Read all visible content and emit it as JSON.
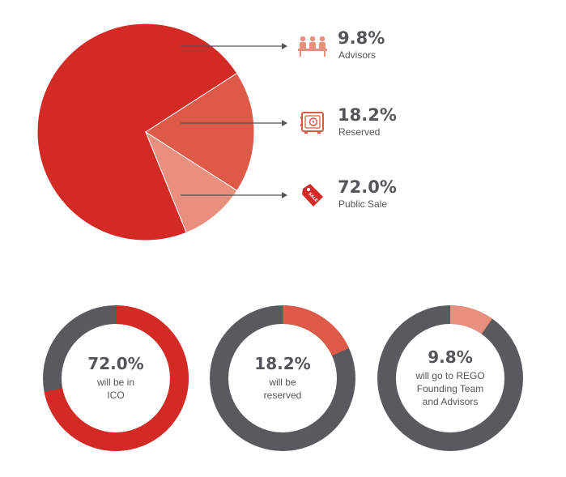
{
  "chart_data": [
    {
      "type": "pie",
      "slices": [
        {
          "label": "Public Sale",
          "value": 72.0,
          "percent_text": "72.0%",
          "color": "#d42a25",
          "icon": "sale-tag-icon"
        },
        {
          "label": "Reserved",
          "value": 18.2,
          "percent_text": "18.2%",
          "color": "#dc5a47",
          "icon": "safe-icon"
        },
        {
          "label": "Advisors",
          "value": 9.8,
          "percent_text": "9.8%",
          "color": "#e8907d",
          "icon": "team-meeting-icon"
        }
      ],
      "legend_placement": "right"
    },
    {
      "type": "pie",
      "variant": "donut",
      "items": [
        {
          "value": 72.0,
          "percent_text": "72.0%",
          "caption": [
            "will be in",
            "ICO"
          ],
          "color": "#d42a25"
        },
        {
          "value": 18.2,
          "percent_text": "18.2%",
          "caption": [
            "will be",
            "reserved"
          ],
          "color": "#dc5a47"
        },
        {
          "value": 9.8,
          "percent_text": "9.8%",
          "caption": [
            "will go to REGO",
            "Founding Team",
            "and Advisors"
          ],
          "color": "#e8907d"
        }
      ],
      "track_color": "#5a5a5e"
    }
  ],
  "colors": {
    "text": "#555559",
    "arrow": "#555559"
  }
}
